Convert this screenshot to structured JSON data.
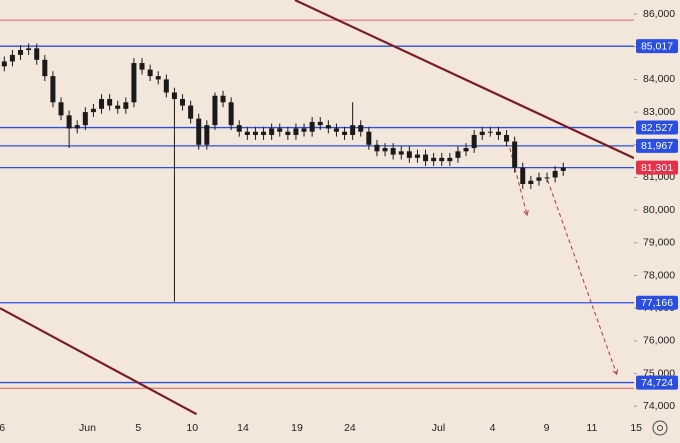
{
  "chart_data": {
    "type": "candlestick",
    "color": "#1a1a1a",
    "x": [
      0.4,
      1.15,
      1.9,
      2.65,
      3.4,
      4.15,
      4.9,
      5.65,
      6.4,
      7.15,
      7.9,
      8.65,
      9.4,
      10.15,
      10.9,
      11.65,
      12.4,
      13.15,
      13.9,
      14.65,
      15.4,
      16.15,
      16.9,
      17.65,
      18.4,
      19.15,
      19.9,
      20.65,
      21.4,
      22.15,
      22.9,
      23.65,
      24.4,
      25.15,
      25.9,
      26.65,
      27.4,
      28.15,
      28.9,
      29.65,
      30.4,
      31.15,
      31.9,
      32.65,
      33.4,
      34.15,
      34.9,
      35.65,
      36.4,
      37.15,
      37.9,
      38.65,
      39.4,
      40.15,
      40.9,
      41.65,
      42.4,
      43.15,
      43.9,
      44.65,
      45.4,
      46.15,
      46.9,
      47.65,
      48.4,
      49.15,
      49.9,
      50.65,
      51.4,
      52.15
    ],
    "open": [
      84400,
      84550,
      84750,
      84900,
      84950,
      84600,
      84100,
      83300,
      82900,
      82500,
      82600,
      83000,
      83100,
      83400,
      83200,
      83100,
      83300,
      84500,
      84300,
      84100,
      84000,
      83600,
      83400,
      83200,
      82800,
      82000,
      82600,
      83500,
      83300,
      82600,
      82400,
      82300,
      82400,
      82300,
      82500,
      82400,
      82300,
      82500,
      82400,
      82700,
      82600,
      82500,
      82400,
      82300,
      82600,
      82400,
      82000,
      81800,
      81900,
      81700,
      81800,
      81600,
      81700,
      81500,
      81600,
      81500,
      81600,
      81800,
      81900,
      82300,
      82400,
      82400,
      82300,
      82100,
      81300,
      80800,
      80900,
      81000,
      81000,
      81200
    ],
    "high": [
      84700,
      84900,
      85050,
      85100,
      85100,
      84750,
      84250,
      83450,
      83050,
      82750,
      83150,
      83250,
      83550,
      83550,
      83350,
      83450,
      84650,
      84650,
      84450,
      84250,
      84150,
      83750,
      83550,
      83350,
      82950,
      82750,
      83600,
      83650,
      83450,
      82750,
      82550,
      82550,
      82550,
      82650,
      82650,
      82550,
      82650,
      82650,
      82850,
      82850,
      82750,
      82650,
      82550,
      83300,
      82750,
      82550,
      82150,
      82050,
      82050,
      81950,
      81950,
      81850,
      81850,
      81750,
      81750,
      81750,
      81950,
      82050,
      82450,
      82550,
      82550,
      82550,
      82450,
      82250,
      81450,
      81050,
      81150,
      81150,
      81350,
      81450
    ],
    "low": [
      84250,
      84400,
      84600,
      84750,
      84450,
      83950,
      83150,
      82750,
      81900,
      82350,
      82450,
      82850,
      82950,
      83050,
      82950,
      82950,
      83150,
      84150,
      83950,
      83850,
      83450,
      77200,
      83050,
      82650,
      81850,
      81850,
      82450,
      83150,
      82450,
      82250,
      82150,
      82150,
      82150,
      82150,
      82250,
      82150,
      82150,
      82250,
      82250,
      82450,
      82350,
      82250,
      82150,
      82150,
      82250,
      81850,
      81650,
      81650,
      81550,
      81550,
      81450,
      81450,
      81350,
      81350,
      81350,
      81350,
      81450,
      81650,
      81750,
      82150,
      82250,
      82150,
      81950,
      81150,
      80650,
      80650,
      80750,
      80850,
      80850,
      81050
    ],
    "close": [
      84550,
      84750,
      84900,
      84950,
      84600,
      84100,
      83300,
      82900,
      82500,
      82600,
      83000,
      83100,
      83400,
      83200,
      83100,
      83300,
      84500,
      84300,
      84100,
      84000,
      83600,
      83400,
      83200,
      82800,
      82000,
      82600,
      83500,
      83300,
      82600,
      82400,
      82300,
      82400,
      82300,
      82500,
      82400,
      82300,
      82500,
      82400,
      82700,
      82600,
      82500,
      82400,
      82300,
      82600,
      82400,
      82000,
      81800,
      81900,
      81700,
      81800,
      81600,
      81700,
      81500,
      81600,
      81500,
      81600,
      81800,
      81900,
      82300,
      82400,
      82400,
      82300,
      82100,
      81300,
      80800,
      80900,
      81000,
      81000,
      81200,
      81300
    ],
    "xlim": [
      0,
      58.7
    ],
    "xticks": [
      {
        "value": 0.2,
        "label": "6"
      },
      {
        "value": 8.1,
        "label": "Jun"
      },
      {
        "value": 12.8,
        "label": "5"
      },
      {
        "value": 17.8,
        "label": "10"
      },
      {
        "value": 22.5,
        "label": "14"
      },
      {
        "value": 27.5,
        "label": "19"
      },
      {
        "value": 32.4,
        "label": "24"
      },
      {
        "value": 40.6,
        "label": "Jul"
      },
      {
        "value": 45.6,
        "label": "4"
      },
      {
        "value": 50.6,
        "label": "9"
      },
      {
        "value": 54.8,
        "label": "11"
      },
      {
        "value": 58.9,
        "label": "15"
      }
    ],
    "ylim": [
      73640,
      86430
    ],
    "yticks": [
      {
        "value": 74000,
        "label": "74,000"
      },
      {
        "value": 75000,
        "label": "75,000"
      },
      {
        "value": 76000,
        "label": "76,000"
      },
      {
        "value": 77000,
        "label": "77,000"
      },
      {
        "value": 78000,
        "label": "78,000"
      },
      {
        "value": 79000,
        "label": "79,000"
      },
      {
        "value": 80000,
        "label": "80,000"
      },
      {
        "value": 81000,
        "label": "81,000"
      },
      {
        "value": 82000,
        "label": "82,000"
      },
      {
        "value": 83000,
        "label": "83,000"
      },
      {
        "value": 84000,
        "label": "84,000"
      },
      {
        "value": 85000,
        "label": "85,000"
      },
      {
        "value": 86000,
        "label": "86,000"
      }
    ],
    "levels": [
      {
        "value": 85017,
        "label": "85,017",
        "color": "#2a4fe0",
        "box_color": "#2a4fe0"
      },
      {
        "value": 82527,
        "label": "82,527",
        "color": "#2a4fe0",
        "box_color": "#2a4fe0"
      },
      {
        "value": 81967,
        "label": "81,967",
        "color": "#2a4fe0",
        "box_color": "#2a4fe0"
      },
      {
        "value": 81301,
        "label": "81,301",
        "color": "#2a4fe0",
        "box_color": "#e53248"
      },
      {
        "value": 77166,
        "label": "77,166",
        "color": "#2a4fe0",
        "box_color": "#2a4fe0"
      },
      {
        "value": 74724,
        "label": "74,724",
        "color": "#2a4fe0",
        "box_color": "#2a4fe0"
      }
    ],
    "red_lines": {
      "color": "#e06060",
      "values": [
        85816,
        74552
      ]
    },
    "trend_lines": {
      "color": "#7a1c24",
      "lines": [
        [
          [
            27.3,
            86429
          ],
          [
            58.7,
            81592
          ]
        ],
        [
          [
            0,
            77001
          ],
          [
            18.2,
            73756
          ]
        ]
      ]
    },
    "projections": {
      "color": "#b03a3a",
      "lines": [
        [
          [
            47.2,
            81898
          ],
          [
            48.8,
            79848
          ]
        ],
        [
          [
            50.7,
            80919
          ],
          [
            57.1,
            74981
          ]
        ]
      ]
    }
  }
}
